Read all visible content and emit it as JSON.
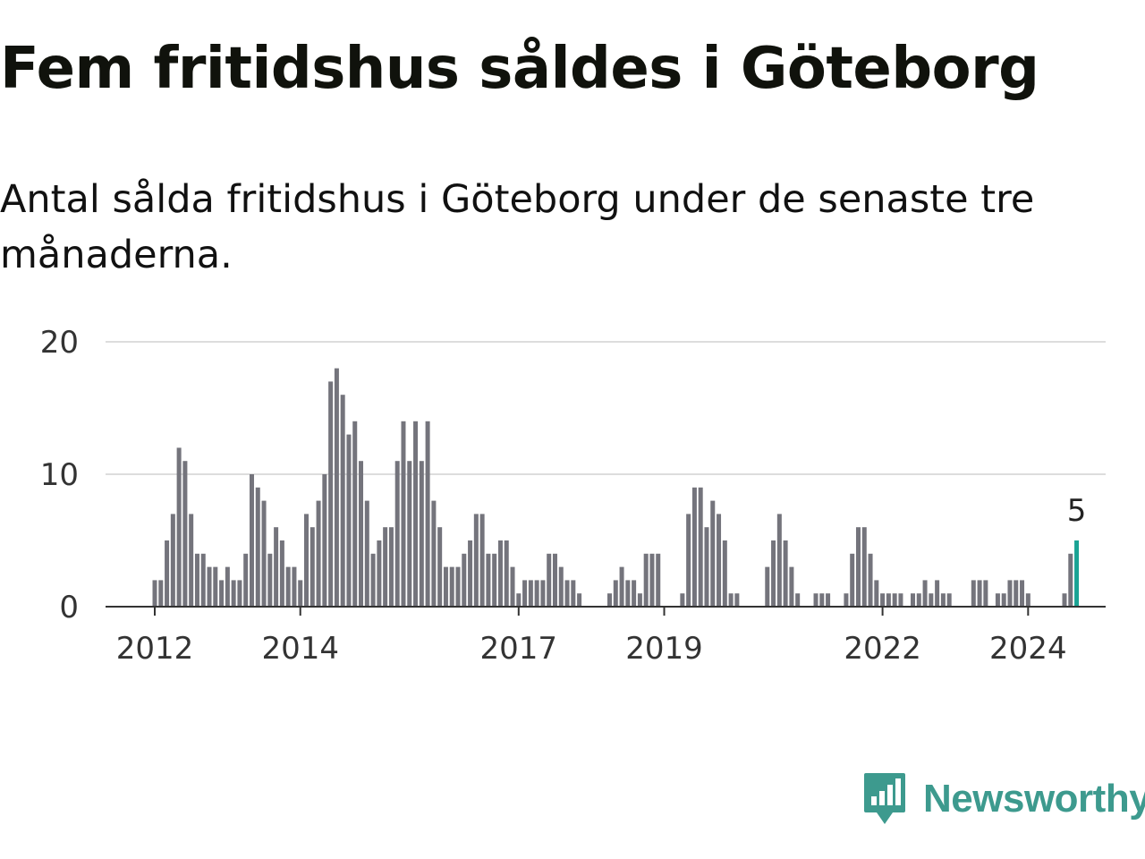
{
  "title": "Fem fritidshus såldes i Göteborg",
  "subtitle": "Antal sålda fritidshus i Göteborg under de senaste tre månaderna.",
  "brand": {
    "name": "Newsworthy",
    "color": "#3d9a8e",
    "icon": "chart-speech-bubble-icon"
  },
  "colors": {
    "bar": "#74747c",
    "highlight": "#1aa394",
    "grid": "#dddddd",
    "axis": "#333333"
  },
  "chart_data": {
    "type": "bar",
    "title": "Fem fritidshus såldes i Göteborg",
    "xlabel": "",
    "ylabel": "",
    "ylim": [
      0,
      20
    ],
    "yticks": [
      0,
      10,
      20
    ],
    "xticks": [
      {
        "label": "2012",
        "index": 0
      },
      {
        "label": "2014",
        "index": 24
      },
      {
        "label": "2017",
        "index": 60
      },
      {
        "label": "2019",
        "index": 84
      },
      {
        "label": "2022",
        "index": 120
      },
      {
        "label": "2024",
        "index": 144
      }
    ],
    "start": "2012-01",
    "frequency": "monthly",
    "values": [
      2,
      2,
      5,
      7,
      12,
      11,
      7,
      4,
      4,
      3,
      3,
      2,
      3,
      2,
      2,
      4,
      10,
      9,
      8,
      4,
      6,
      5,
      3,
      3,
      2,
      7,
      6,
      8,
      10,
      17,
      18,
      16,
      13,
      14,
      11,
      8,
      4,
      5,
      6,
      6,
      11,
      14,
      11,
      14,
      11,
      14,
      8,
      6,
      3,
      3,
      3,
      4,
      5,
      7,
      7,
      4,
      4,
      5,
      5,
      3,
      1,
      2,
      2,
      2,
      2,
      4,
      4,
      3,
      2,
      2,
      1,
      0,
      0,
      0,
      0,
      1,
      2,
      3,
      2,
      2,
      1,
      4,
      4,
      4,
      0,
      0,
      0,
      1,
      7,
      9,
      9,
      6,
      8,
      7,
      5,
      1,
      1,
      0,
      0,
      0,
      0,
      3,
      5,
      7,
      5,
      3,
      1,
      0,
      0,
      1,
      1,
      1,
      0,
      0,
      1,
      4,
      6,
      6,
      4,
      2,
      1,
      1,
      1,
      1,
      0,
      1,
      1,
      2,
      1,
      2,
      1,
      1,
      0,
      0,
      0,
      2,
      2,
      2,
      0,
      1,
      1,
      2,
      2,
      2,
      1,
      0,
      0,
      0,
      0,
      0,
      1,
      4,
      5
    ],
    "highlight": {
      "index": 152,
      "value": 5,
      "label": "5"
    }
  }
}
